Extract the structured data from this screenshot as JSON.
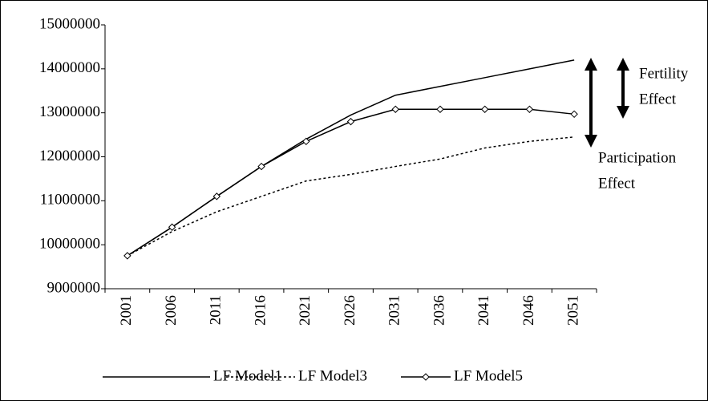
{
  "chart_data": {
    "type": "line",
    "categories": [
      "2001",
      "2006",
      "2011",
      "2016",
      "2021",
      "2026",
      "2031",
      "2036",
      "2041",
      "2046",
      "2051"
    ],
    "series": [
      {
        "name": "LF Model1",
        "color": "#000000",
        "line_style": "solid",
        "marker": "none",
        "values": [
          9750000,
          10400000,
          11100000,
          11780000,
          12400000,
          12950000,
          13400000,
          13600000,
          13800000,
          14000000,
          14200000
        ]
      },
      {
        "name": "LF Model3",
        "color": "#000000",
        "line_style": "dotted",
        "marker": "none",
        "values": [
          9750000,
          10300000,
          10750000,
          11100000,
          11450000,
          11600000,
          11780000,
          11950000,
          12200000,
          12350000,
          12450000
        ]
      },
      {
        "name": "LF Model5",
        "color": "#000000",
        "line_style": "solid",
        "marker": "diamond",
        "values": [
          9750000,
          10400000,
          11100000,
          11780000,
          12350000,
          12800000,
          13080000,
          13080000,
          13080000,
          13080000,
          12970000
        ]
      }
    ],
    "ylim": [
      9000000,
      15000000
    ],
    "yticks": [
      9000000,
      10000000,
      11000000,
      12000000,
      13000000,
      14000000,
      15000000
    ],
    "grid": false,
    "legend": "bottom",
    "annotations": [
      [
        "Fertility",
        "Effect"
      ],
      [
        "Participation",
        "Effect"
      ]
    ]
  }
}
